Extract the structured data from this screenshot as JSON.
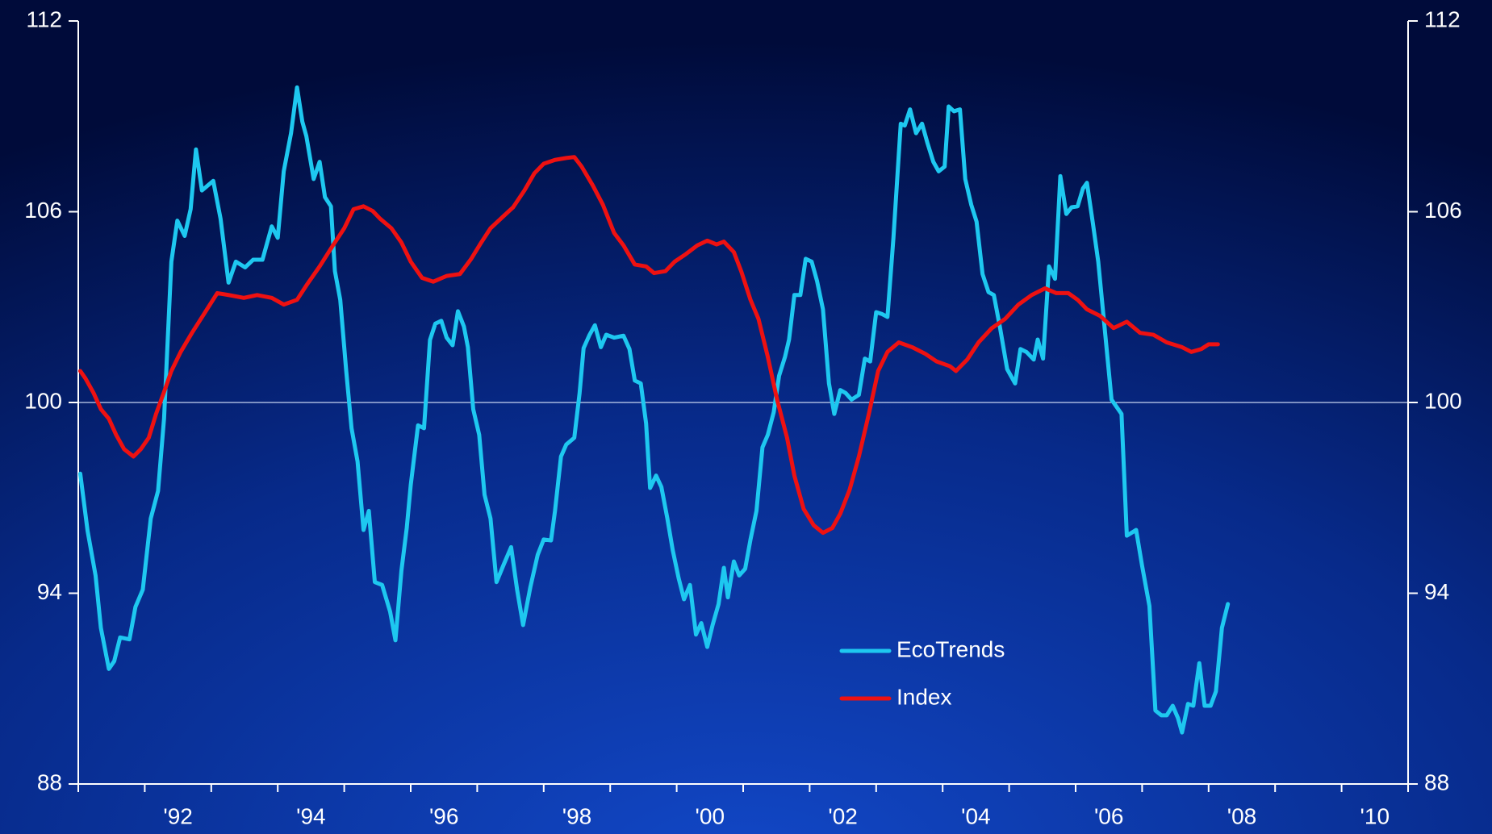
{
  "chart_data": {
    "type": "line",
    "xlim": [
      1991,
      2011
    ],
    "xticks": [
      {
        "value": 1992.5,
        "label": "'92"
      },
      {
        "value": 1994.5,
        "label": "'94"
      },
      {
        "value": 1996.5,
        "label": "'96"
      },
      {
        "value": 1998.5,
        "label": "'98"
      },
      {
        "value": 2000.5,
        "label": "'00"
      },
      {
        "value": 2002.5,
        "label": "'02"
      },
      {
        "value": 2004.5,
        "label": "'04"
      },
      {
        "value": 2006.5,
        "label": "'06"
      },
      {
        "value": 2008.5,
        "label": "'08"
      },
      {
        "value": 2010.5,
        "label": "'10"
      }
    ],
    "xminorticks": [
      1991,
      1992,
      1993,
      1994,
      1995,
      1996,
      1997,
      1998,
      1999,
      2000,
      2001,
      2002,
      2003,
      2004,
      2005,
      2006,
      2007,
      2008,
      2009,
      2010,
      2011
    ],
    "ylim": [
      88,
      112
    ],
    "yticks": [
      88,
      94,
      100,
      106,
      112
    ],
    "y2lim": [
      88,
      112
    ],
    "y2ticks": [
      88,
      94,
      100,
      106,
      112
    ],
    "reference_line": 100,
    "grid": false,
    "series": [
      {
        "name": "EcoTrends",
        "color": "#1ec8f0",
        "x": [
          1991.03,
          1991.14,
          1991.26,
          1991.34,
          1991.46,
          1991.54,
          1991.63,
          1991.77,
          1991.86,
          1991.97,
          1992.09,
          1992.2,
          1992.29,
          1992.4,
          1992.49,
          1992.6,
          1992.69,
          1992.77,
          1992.86,
          1993.03,
          1993.14,
          1993.26,
          1993.37,
          1993.51,
          1993.63,
          1993.77,
          1993.91,
          1994.0,
          1994.09,
          1994.2,
          1994.29,
          1994.37,
          1994.43,
          1994.54,
          1994.63,
          1994.71,
          1994.8,
          1994.86,
          1994.94,
          1995.03,
          1995.11,
          1995.2,
          1995.29,
          1995.37,
          1995.46,
          1995.57,
          1995.69,
          1995.77,
          1995.86,
          1995.94,
          1996.0,
          1996.11,
          1996.2,
          1996.29,
          1996.37,
          1996.46,
          1996.54,
          1996.63,
          1996.71,
          1996.8,
          1996.86,
          1996.94,
          1997.03,
          1997.11,
          1997.2,
          1997.29,
          1997.4,
          1997.51,
          1997.6,
          1997.69,
          1997.8,
          1997.91,
          1998.0,
          1998.11,
          1998.17,
          1998.26,
          1998.34,
          1998.46,
          1998.54,
          1998.6,
          1998.69,
          1998.77,
          1998.86,
          1998.94,
          1999.06,
          1999.2,
          1999.29,
          1999.37,
          1999.46,
          1999.54,
          1999.6,
          1999.69,
          1999.77,
          1999.86,
          1999.94,
          2000.03,
          2000.11,
          2000.2,
          2000.29,
          2000.37,
          2000.46,
          2000.54,
          2000.63,
          2000.71,
          2000.77,
          2000.86,
          2000.94,
          2001.03,
          2001.11,
          2001.2,
          2001.29,
          2001.37,
          2001.46,
          2001.54,
          2001.63,
          2001.69,
          2001.77,
          2001.86,
          2001.94,
          2002.03,
          2002.11,
          2002.2,
          2002.29,
          2002.37,
          2002.46,
          2002.54,
          2002.63,
          2002.74,
          2002.83,
          2002.91,
          2003.0,
          2003.09,
          2003.17,
          2003.26,
          2003.37,
          2003.43,
          2003.51,
          2003.6,
          2003.69,
          2003.77,
          2003.86,
          2003.94,
          2004.03,
          2004.09,
          2004.17,
          2004.26,
          2004.34,
          2004.43,
          2004.51,
          2004.6,
          2004.69,
          2004.77,
          2004.86,
          2004.97,
          2005.09,
          2005.17,
          2005.26,
          2005.37,
          2005.43,
          2005.51,
          2005.6,
          2005.69,
          2005.77,
          2005.86,
          2005.94,
          2006.03,
          2006.11,
          2006.17,
          2006.26,
          2006.34,
          2006.43,
          2006.54,
          2006.69,
          2006.77,
          2006.91,
          2007.0,
          2007.11,
          2007.2,
          2007.29,
          2007.37,
          2007.46,
          2007.54,
          2007.6,
          2007.69,
          2007.77,
          2007.86,
          2007.94,
          2008.03,
          2008.11,
          2008.2,
          2008.29
        ],
        "values": [
          97.76,
          95.96,
          94.56,
          92.91,
          91.62,
          91.86,
          92.61,
          92.55,
          93.57,
          94.11,
          96.35,
          97.22,
          99.49,
          104.43,
          105.72,
          105.24,
          106.08,
          107.96,
          106.67,
          106.97,
          105.78,
          103.77,
          104.43,
          104.25,
          104.49,
          104.49,
          105.54,
          105.18,
          107.27,
          108.47,
          109.91,
          108.83,
          108.38,
          107.03,
          107.57,
          106.46,
          106.17,
          104.13,
          103.23,
          100.99,
          99.19,
          98.15,
          95.99,
          96.59,
          94.35,
          94.26,
          93.42,
          92.52,
          94.71,
          96.05,
          97.4,
          99.28,
          99.19,
          101.97,
          102.48,
          102.57,
          102.04,
          101.8,
          102.87,
          102.39,
          101.74,
          99.79,
          98.98,
          97.1,
          96.35,
          94.35,
          94.91,
          95.45,
          94.11,
          93.0,
          94.2,
          95.21,
          95.69,
          95.66,
          96.59,
          98.3,
          98.68,
          98.89,
          100.3,
          101.71,
          102.13,
          102.43,
          101.74,
          102.13,
          102.04,
          102.1,
          101.68,
          100.69,
          100.6,
          99.34,
          97.31,
          97.7,
          97.34,
          96.35,
          95.36,
          94.47,
          93.81,
          94.26,
          92.7,
          93.06,
          92.31,
          93.0,
          93.66,
          94.8,
          93.87,
          95.0,
          94.56,
          94.77,
          95.69,
          96.59,
          98.59,
          98.98,
          99.7,
          100.84,
          101.44,
          101.98,
          103.38,
          103.38,
          104.52,
          104.43,
          103.83,
          102.93,
          100.6,
          99.64,
          100.39,
          100.3,
          100.09,
          100.24,
          101.38,
          101.29,
          102.84,
          102.78,
          102.69,
          105.18,
          108.77,
          108.71,
          109.22,
          108.47,
          108.77,
          108.17,
          107.57,
          107.27,
          107.42,
          109.31,
          109.16,
          109.22,
          107.03,
          106.22,
          105.69,
          104.04,
          103.47,
          103.38,
          102.39,
          101.05,
          100.6,
          101.68,
          101.59,
          101.35,
          101.98,
          101.38,
          104.28,
          103.89,
          107.12,
          105.93,
          106.14,
          106.17,
          106.73,
          106.91,
          105.63,
          104.43,
          102.48,
          100.09,
          99.64,
          95.81,
          95.99,
          94.86,
          93.6,
          90.31,
          90.16,
          90.16,
          90.46,
          90.07,
          89.62,
          90.52,
          90.46,
          91.8,
          90.46,
          90.46,
          90.91,
          92.91,
          93.66
        ]
      },
      {
        "name": "Index",
        "color": "#ee1111",
        "x": [
          1991.03,
          1991.11,
          1991.23,
          1991.34,
          1991.46,
          1991.57,
          1991.69,
          1991.83,
          1991.94,
          1992.06,
          1992.17,
          1992.29,
          1992.4,
          1992.54,
          1992.71,
          1992.89,
          1993.09,
          1993.26,
          1993.49,
          1993.69,
          1993.91,
          1994.09,
          1994.29,
          1994.43,
          1994.63,
          1994.83,
          1995.0,
          1995.14,
          1995.29,
          1995.43,
          1995.54,
          1995.71,
          1995.86,
          1996.0,
          1996.17,
          1996.34,
          1996.54,
          1996.74,
          1996.91,
          1997.06,
          1997.2,
          1997.4,
          1997.54,
          1997.71,
          1997.86,
          1998.0,
          1998.17,
          1998.34,
          1998.46,
          1998.57,
          1998.74,
          1998.89,
          1999.06,
          1999.2,
          1999.37,
          1999.54,
          1999.66,
          1999.83,
          1999.97,
          2000.14,
          2000.31,
          2000.46,
          2000.6,
          2000.71,
          2000.86,
          2000.97,
          2001.11,
          2001.23,
          2001.37,
          2001.51,
          2001.66,
          2001.77,
          2001.91,
          2002.06,
          2002.2,
          2002.34,
          2002.46,
          2002.6,
          2002.74,
          2002.89,
          2003.03,
          2003.17,
          2003.34,
          2003.54,
          2003.74,
          2003.91,
          2004.11,
          2004.2,
          2004.37,
          2004.54,
          2004.74,
          2004.94,
          2005.14,
          2005.34,
          2005.54,
          2005.71,
          2005.89,
          2006.03,
          2006.17,
          2006.37,
          2006.57,
          2006.77,
          2006.97,
          2007.17,
          2007.37,
          2007.6,
          2007.74,
          2007.89,
          2008.0,
          2008.14
        ],
        "values": [
          100.99,
          100.75,
          100.3,
          99.79,
          99.49,
          98.98,
          98.53,
          98.3,
          98.53,
          98.89,
          99.64,
          100.33,
          100.99,
          101.59,
          102.19,
          102.78,
          103.44,
          103.38,
          103.29,
          103.38,
          103.29,
          103.08,
          103.23,
          103.68,
          104.28,
          104.94,
          105.48,
          106.08,
          106.17,
          106.02,
          105.78,
          105.48,
          105.03,
          104.43,
          103.92,
          103.8,
          103.98,
          104.04,
          104.52,
          105.03,
          105.48,
          105.87,
          106.14,
          106.67,
          107.21,
          107.51,
          107.63,
          107.69,
          107.72,
          107.42,
          106.82,
          106.22,
          105.33,
          104.94,
          104.34,
          104.28,
          104.07,
          104.13,
          104.43,
          104.67,
          104.94,
          105.09,
          104.97,
          105.06,
          104.73,
          104.13,
          103.23,
          102.63,
          101.44,
          100.09,
          98.89,
          97.7,
          96.65,
          96.14,
          95.9,
          96.05,
          96.5,
          97.25,
          98.3,
          99.64,
          100.99,
          101.59,
          101.89,
          101.74,
          101.53,
          101.29,
          101.14,
          100.99,
          101.35,
          101.89,
          102.34,
          102.63,
          103.08,
          103.38,
          103.59,
          103.44,
          103.44,
          103.23,
          102.93,
          102.72,
          102.34,
          102.54,
          102.19,
          102.13,
          101.89,
          101.74,
          101.59,
          101.68,
          101.83,
          101.83
        ]
      }
    ]
  }
}
